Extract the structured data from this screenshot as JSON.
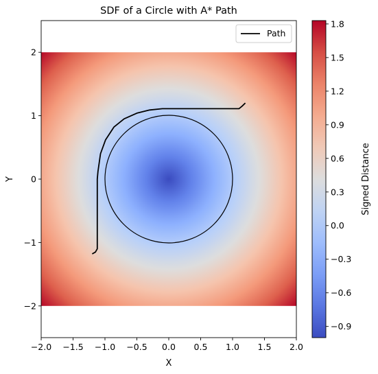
{
  "chart_data": {
    "type": "heatmap",
    "title": "SDF of a Circle with A* Path",
    "xlabel": "X",
    "ylabel": "Y",
    "xlim": [
      -2.0,
      2.0
    ],
    "ylim": [
      -2.5,
      2.5
    ],
    "field_extent": {
      "x": [
        -2.0,
        2.0
      ],
      "y": [
        -2.0,
        2.0
      ]
    },
    "xticks": [
      "−2.0",
      "−1.5",
      "−1.0",
      "−0.5",
      "0.0",
      "0.5",
      "1.0",
      "1.5",
      "2.0"
    ],
    "yticks": [
      "−2",
      "−1",
      "0",
      "1",
      "2"
    ],
    "colormap": "coolwarm",
    "colorbar": {
      "label": "Signed Distance",
      "range": [
        -1.0,
        1.83
      ],
      "ticks": [
        "−0.9",
        "−0.6",
        "−0.3",
        "0.0",
        "0.3",
        "0.6",
        "0.9",
        "1.2",
        "1.5",
        "1.8"
      ]
    },
    "circle": {
      "center": [
        0,
        0
      ],
      "radius": 1.0
    },
    "path": {
      "name": "Path",
      "color": "#000000",
      "points": [
        [
          -1.2,
          -1.18
        ],
        [
          -1.15,
          -1.15
        ],
        [
          -1.12,
          -1.1
        ],
        [
          -1.12,
          -0.5
        ],
        [
          -1.12,
          0.0
        ],
        [
          -1.11,
          0.12
        ],
        [
          -1.07,
          0.4
        ],
        [
          -0.99,
          0.62
        ],
        [
          -0.86,
          0.82
        ],
        [
          -0.7,
          0.95
        ],
        [
          -0.5,
          1.04
        ],
        [
          -0.3,
          1.09
        ],
        [
          -0.1,
          1.11
        ],
        [
          0.0,
          1.11
        ],
        [
          0.5,
          1.11
        ],
        [
          1.0,
          1.11
        ],
        [
          1.1,
          1.11
        ],
        [
          1.15,
          1.15
        ],
        [
          1.2,
          1.2
        ]
      ]
    },
    "legend": {
      "position": "top-right",
      "entries": [
        "Path"
      ]
    }
  }
}
